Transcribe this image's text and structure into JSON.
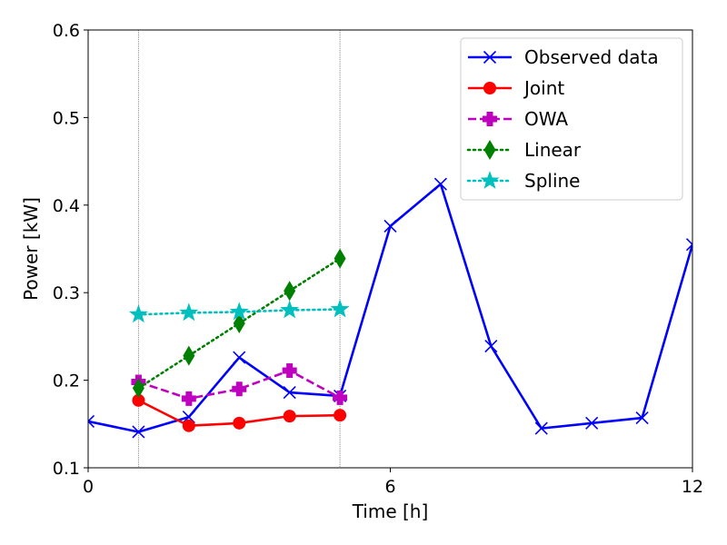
{
  "chart_data": {
    "type": "line",
    "xlabel": "Time [h]",
    "ylabel": "Power [kW]",
    "xlim": [
      0,
      12
    ],
    "ylim": [
      0.1,
      0.6
    ],
    "xticks": [
      0,
      6,
      12
    ],
    "xtick_labels": [
      "0",
      "6",
      "12"
    ],
    "yticks": [
      0.1,
      0.2,
      0.3,
      0.4,
      0.5,
      0.6
    ],
    "ytick_labels": [
      "0.1",
      "0.2",
      "0.3",
      "0.4",
      "0.5",
      "0.6"
    ],
    "vlines": [
      1,
      5
    ],
    "grid": false,
    "legend_position": "top-right",
    "series": [
      {
        "name": "Observed data",
        "color": "#0000ff",
        "marker": "x",
        "linestyle": "solid",
        "x": [
          0,
          1,
          2,
          3,
          4,
          5,
          6,
          7,
          8,
          9,
          10,
          11,
          12
        ],
        "y": [
          0.153,
          0.141,
          0.158,
          0.226,
          0.186,
          0.182,
          0.376,
          0.424,
          0.239,
          0.145,
          0.151,
          0.157,
          0.355
        ]
      },
      {
        "name": "Joint",
        "color": "#ff0000",
        "marker": "circle",
        "linestyle": "solid",
        "x": [
          1,
          2,
          3,
          4,
          5
        ],
        "y": [
          0.177,
          0.148,
          0.151,
          0.159,
          0.16
        ]
      },
      {
        "name": "OWA",
        "color": "#bf00bf",
        "marker": "plus",
        "linestyle": "dashed",
        "x": [
          1,
          2,
          3,
          4,
          5
        ],
        "y": [
          0.198,
          0.179,
          0.19,
          0.211,
          0.18
        ]
      },
      {
        "name": "Linear",
        "color": "#008000",
        "marker": "diamond",
        "linestyle": "dotted",
        "x": [
          1,
          2,
          3,
          4,
          5
        ],
        "y": [
          0.191,
          0.228,
          0.265,
          0.302,
          0.339
        ]
      },
      {
        "name": "Spline",
        "color": "#00bfbf",
        "marker": "star",
        "linestyle": "dotted",
        "x": [
          1,
          2,
          3,
          4,
          5
        ],
        "y": [
          0.275,
          0.277,
          0.278,
          0.28,
          0.281
        ]
      }
    ]
  }
}
